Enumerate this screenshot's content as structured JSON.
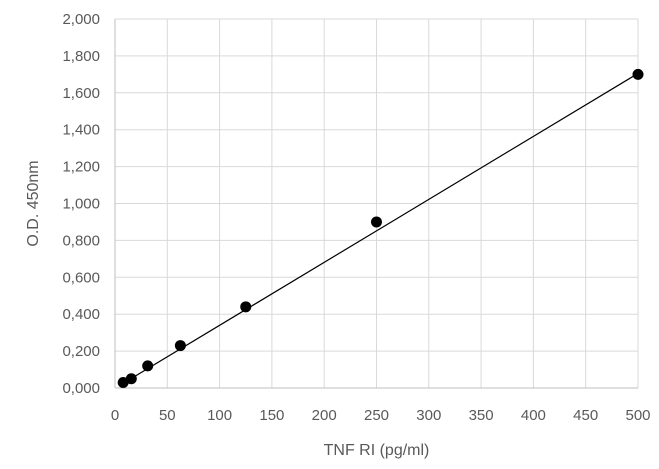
{
  "chart_data": {
    "type": "scatter",
    "title": "",
    "xlabel": "TNF RI (pg/ml)",
    "ylabel": "O.D.  450nm",
    "xlim": [
      0,
      500
    ],
    "ylim": [
      0,
      2
    ],
    "xticks": [
      "0",
      "50",
      "100",
      "150",
      "200",
      "250",
      "300",
      "350",
      "400",
      "450",
      "500"
    ],
    "yticks": [
      "0,000",
      "0,200",
      "0,400",
      "0,600",
      "0,800",
      "1,000",
      "1,200",
      "1,400",
      "1,600",
      "1,800",
      "2,000"
    ],
    "grid": true,
    "legend": "none",
    "series": [
      {
        "x": [
          7.8,
          15.6,
          31.25,
          62.5,
          125,
          250,
          500
        ],
        "y": [
          0.03,
          0.05,
          0.12,
          0.23,
          0.44,
          0.9,
          1.7
        ],
        "marker_color": "#000000"
      }
    ],
    "trendline": {
      "type": "linear",
      "x": [
        7.8,
        500
      ],
      "y": [
        0.025,
        1.705
      ],
      "color": "#000000"
    }
  }
}
